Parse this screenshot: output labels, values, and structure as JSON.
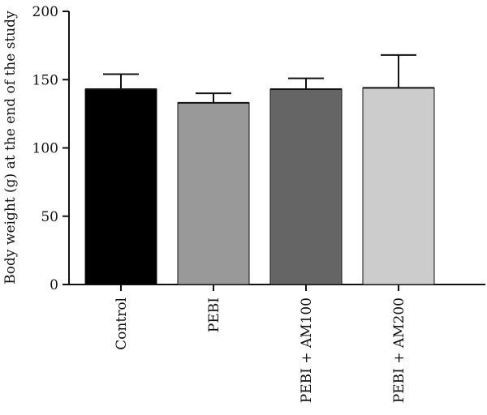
{
  "chart_data": {
    "type": "bar",
    "title": "",
    "xlabel": "",
    "ylabel": "Body weight (g) at the end of the study",
    "ylim": [
      0,
      200
    ],
    "yticks": [
      0,
      50,
      100,
      150,
      200
    ],
    "categories": [
      "Control",
      "PEBI",
      "PEBI + AM100",
      "PEBI + AM200"
    ],
    "values": [
      143,
      133,
      143,
      144
    ],
    "errors": [
      11,
      7,
      8,
      24
    ],
    "colors": [
      "#000000",
      "#999999",
      "#656565",
      "#cccccc"
    ],
    "grid": false,
    "legend": "none"
  }
}
